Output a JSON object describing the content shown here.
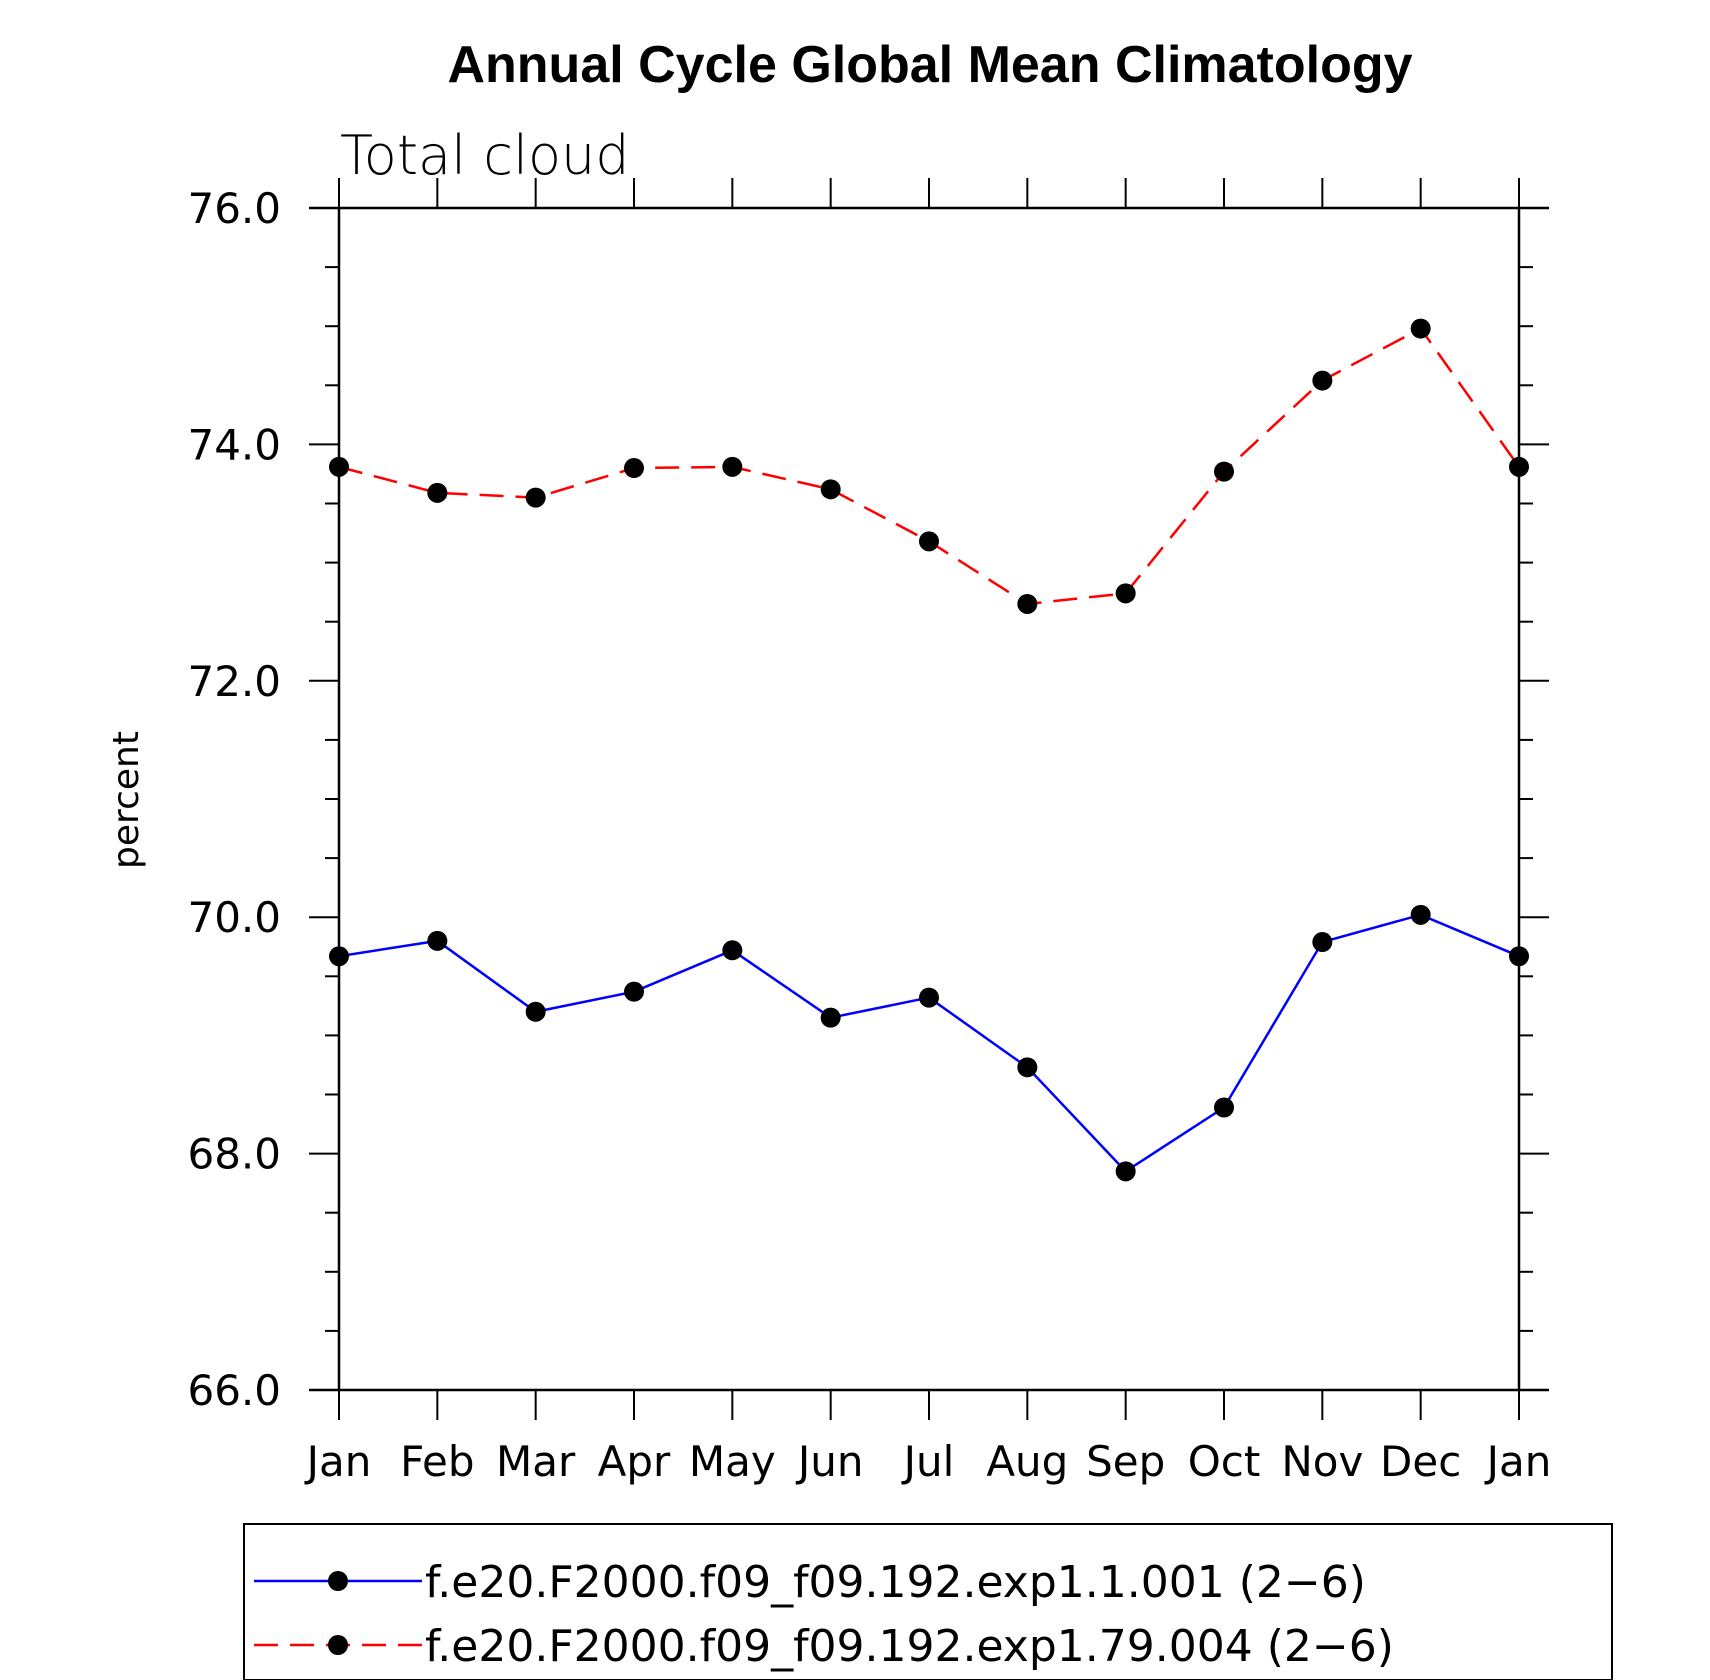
{
  "chart_data": {
    "type": "line",
    "title": "Annual Cycle Global Mean Climatology",
    "subtitle": "Total cloud",
    "xlabel": "",
    "ylabel": "percent",
    "categories": [
      "Jan",
      "Feb",
      "Mar",
      "Apr",
      "May",
      "Jun",
      "Jul",
      "Aug",
      "Sep",
      "Oct",
      "Nov",
      "Dec",
      "Jan"
    ],
    "ylim": [
      66.0,
      76.0
    ],
    "yticks": [
      "66.0",
      "68.0",
      "70.0",
      "72.0",
      "74.0",
      "76.0"
    ],
    "yminor_step": 0.5,
    "series": [
      {
        "name": "f.e20.F2000.f09_f09.192.exp1.1.001 (2−6)",
        "color": "#0000ff",
        "style": "solid",
        "marker": "filled-circle",
        "values": [
          69.67,
          69.8,
          69.2,
          69.37,
          69.72,
          69.15,
          69.32,
          68.73,
          67.85,
          68.39,
          69.79,
          70.02,
          69.67
        ]
      },
      {
        "name": "f.e20.F2000.f09_f09.192.exp1.79.004 (2−6)",
        "color": "#ff0000",
        "style": "dashed",
        "marker": "filled-circle",
        "values": [
          73.81,
          73.59,
          73.55,
          73.8,
          73.81,
          73.62,
          73.18,
          72.65,
          72.74,
          73.77,
          74.54,
          74.98,
          73.81
        ]
      }
    ],
    "legend_position": "bottom"
  }
}
